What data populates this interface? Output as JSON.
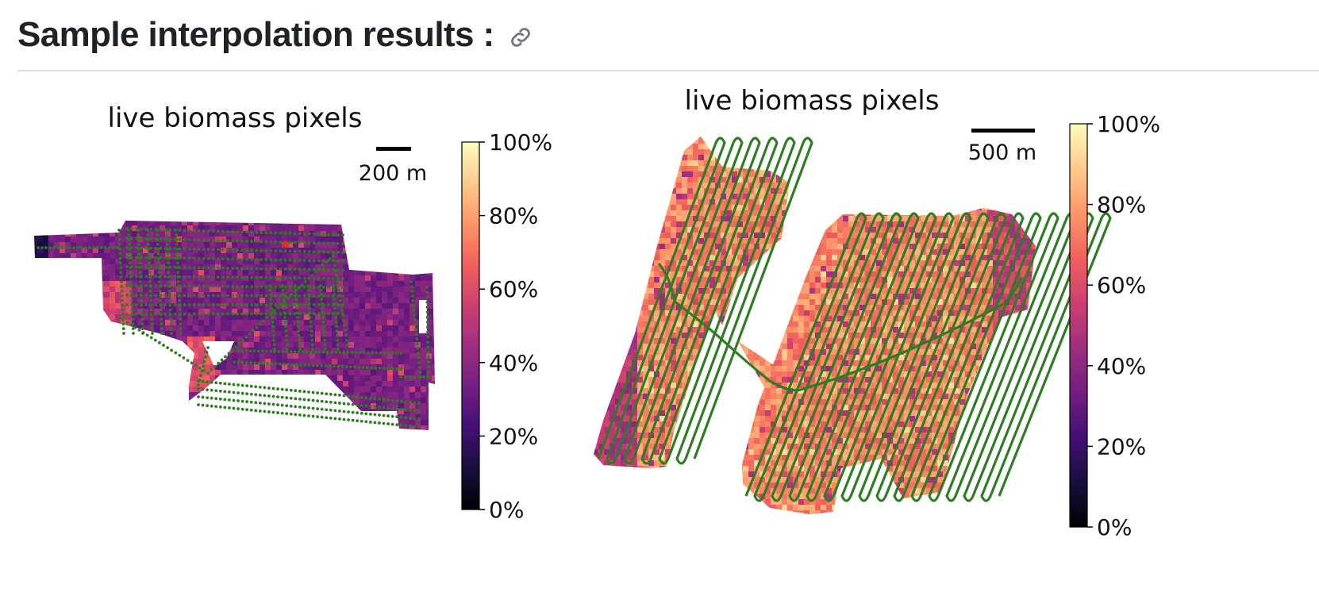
{
  "page": {
    "heading": "Sample interpolation results :",
    "link_icon": "link-icon"
  },
  "colors": {
    "path": "#2e7d22",
    "highlight_point": "#e0301e",
    "colormap": [
      "#000004",
      "#180f3d",
      "#440f76",
      "#721f81",
      "#9e2f7f",
      "#cd4071",
      "#f1605d",
      "#fd9668",
      "#feca8d",
      "#fcfdbf"
    ]
  },
  "chart_data": [
    {
      "type": "heatmap",
      "title": "live biomass pixels",
      "scale_bar": "200 m",
      "colorbar": {
        "label": "",
        "range": [
          0,
          100
        ],
        "ticks": [
          0,
          20,
          40,
          60,
          80,
          100
        ],
        "tick_labels": [
          "0%",
          "20%",
          "40%",
          "60%",
          "80%",
          "100%"
        ]
      },
      "overlay": "sample points (green dotted transects)",
      "values_range_observed": [
        5,
        80
      ]
    },
    {
      "type": "heatmap",
      "title": "live biomass pixels",
      "scale_bar": "500 m",
      "colorbar": {
        "label": "",
        "range": [
          0,
          100
        ],
        "ticks": [
          0,
          20,
          40,
          60,
          80,
          100
        ],
        "tick_labels": [
          "0%",
          "20%",
          "40%",
          "60%",
          "80%",
          "100%"
        ]
      },
      "overlay": "sample track (green continuous transects)",
      "values_range_observed": [
        15,
        95
      ]
    }
  ]
}
